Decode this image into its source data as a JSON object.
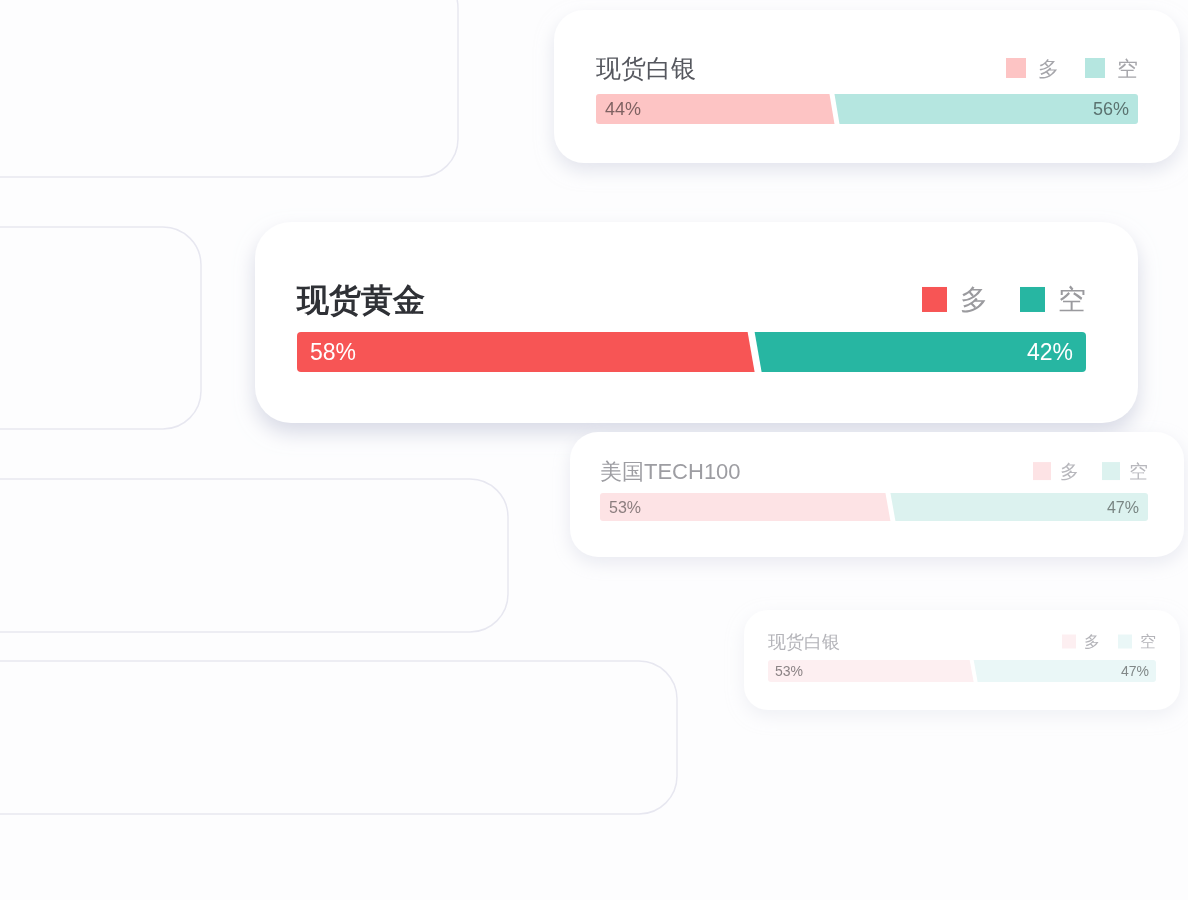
{
  "chart_data": [
    {
      "type": "bar",
      "orientation": "horizontal",
      "stacked": true,
      "title": "现货白银",
      "categories": [
        null
      ],
      "xlim": [
        0,
        100
      ],
      "legend": "top right",
      "series": [
        {
          "name": "多",
          "color": "#fdc4c4",
          "values": [
            44
          ],
          "value_labels": [
            "44%"
          ]
        },
        {
          "name": "空",
          "color": "#b5e6e0",
          "values": [
            56
          ],
          "value_labels": [
            "56%"
          ]
        }
      ]
    },
    {
      "type": "bar",
      "orientation": "horizontal",
      "stacked": true,
      "title": "现货黄金",
      "categories": [
        null
      ],
      "xlim": [
        0,
        100
      ],
      "legend": "top right",
      "series": [
        {
          "name": "多",
          "color": "#f75555",
          "values": [
            58
          ],
          "value_labels": [
            "58%"
          ]
        },
        {
          "name": "空",
          "color": "#27b6a2",
          "values": [
            42
          ],
          "value_labels": [
            "42%"
          ]
        }
      ]
    },
    {
      "type": "bar",
      "orientation": "horizontal",
      "stacked": true,
      "title": "美国TECH100",
      "categories": [
        null
      ],
      "xlim": [
        0,
        100
      ],
      "legend": "top right",
      "series": [
        {
          "name": "多",
          "color": "#fde3e5",
          "values": [
            53
          ],
          "value_labels": [
            "53%"
          ]
        },
        {
          "name": "空",
          "color": "#dcf2ef",
          "values": [
            47
          ],
          "value_labels": [
            "47%"
          ]
        }
      ]
    },
    {
      "type": "bar",
      "orientation": "horizontal",
      "stacked": true,
      "title": "现货白银",
      "categories": [
        null
      ],
      "xlim": [
        0,
        100
      ],
      "legend": "top right",
      "series": [
        {
          "name": "多",
          "color": "#fdeff1",
          "values": [
            53
          ],
          "value_labels": [
            "53%"
          ]
        },
        {
          "name": "空",
          "color": "#eaf7f7",
          "values": [
            47
          ],
          "value_labels": [
            "47%"
          ]
        }
      ]
    }
  ]
}
